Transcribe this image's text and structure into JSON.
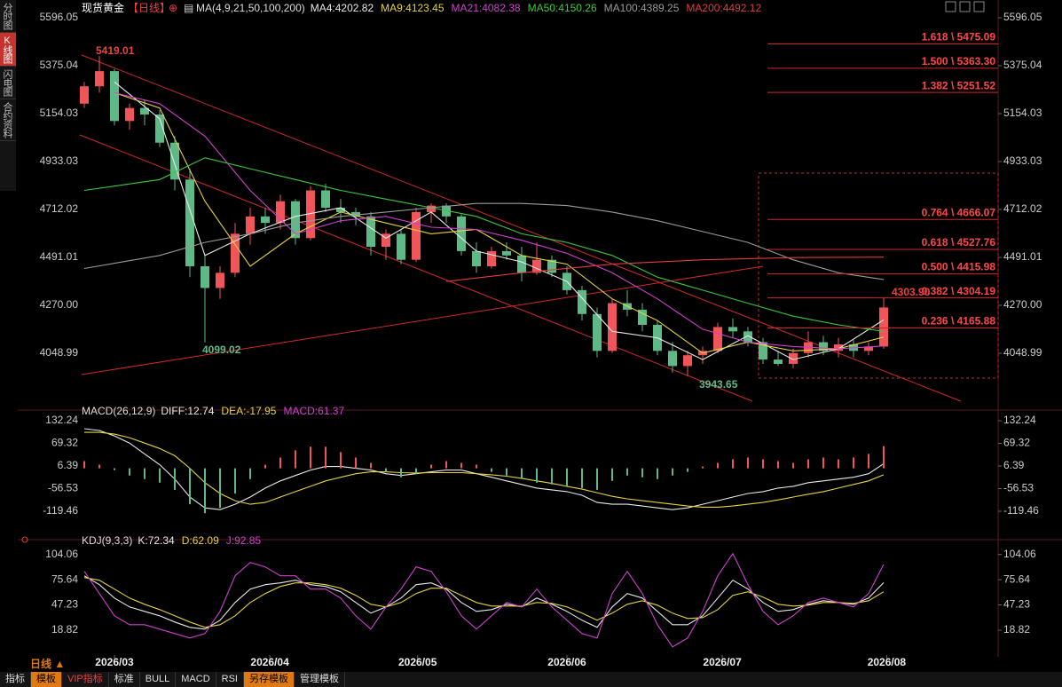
{
  "sidebar": [
    "分时图",
    "K线图",
    "闪电图",
    "合约资料"
  ],
  "chart_data": [
    {
      "type": "candlestick",
      "title": "现货黄金",
      "period": "【日线】",
      "indicator": "MA(4,9,21,50,100,200)",
      "up_color": "#f0555a",
      "down_color": "#5fb987",
      "open": [
        5200,
        5280,
        5350,
        5120,
        5180,
        5150,
        5020,
        4850,
        4450,
        4350,
        4420,
        4600,
        4680,
        4650,
        4750,
        4580,
        4800,
        4720,
        4700,
        4680,
        4540,
        4600,
        4480,
        4700,
        4730,
        4680,
        4520,
        4450,
        4520,
        4500,
        4420,
        4480,
        4420,
        4340,
        4230,
        4060,
        4280,
        4250,
        4180,
        4060,
        3990,
        4040,
        4060,
        4170,
        4150,
        4100,
        4020,
        4000,
        4050,
        4100,
        4060,
        4090,
        4060,
        4080
      ],
      "high": [
        5300,
        5419.01,
        5360,
        5200,
        5220,
        5170,
        5050,
        4900,
        4500,
        4450,
        4650,
        4720,
        4720,
        4780,
        4760,
        4820,
        4830,
        4760,
        4720,
        4700,
        4620,
        4620,
        4720,
        4740,
        4740,
        4690,
        4560,
        4540,
        4560,
        4540,
        4560,
        4500,
        4450,
        4360,
        4260,
        4300,
        4340,
        4280,
        4200,
        4100,
        4060,
        4080,
        4190,
        4210,
        4170,
        4120,
        4060,
        4070,
        4150,
        4130,
        4120,
        4110,
        4100,
        4303.9
      ],
      "low": [
        5180,
        5250,
        5100,
        5080,
        5100,
        5000,
        4800,
        4400,
        4099.02,
        4300,
        4400,
        4550,
        4600,
        4620,
        4550,
        4570,
        4700,
        4650,
        4640,
        4500,
        4480,
        4460,
        4470,
        4650,
        4650,
        4500,
        4420,
        4440,
        4480,
        4380,
        4410,
        4400,
        4320,
        4200,
        4030,
        4050,
        4220,
        4150,
        4040,
        3960,
        3943.65,
        4000,
        4050,
        4120,
        4080,
        4000,
        3990,
        3980,
        4030,
        4040,
        4030,
        4030,
        4040,
        4070
      ],
      "close": [
        5280,
        5350,
        5120,
        5180,
        5150,
        5020,
        4850,
        4450,
        4350,
        4420,
        4600,
        4680,
        4650,
        4750,
        4580,
        4800,
        4720,
        4700,
        4680,
        4540,
        4600,
        4480,
        4700,
        4730,
        4680,
        4520,
        4450,
        4520,
        4500,
        4420,
        4480,
        4420,
        4340,
        4230,
        4060,
        4280,
        4250,
        4180,
        4060,
        3990,
        4040,
        4060,
        4170,
        4150,
        4100,
        4020,
        4000,
        4050,
        4100,
        4060,
        4090,
        4060,
        4080,
        4260
      ],
      "series": [
        {
          "name": "MA4:4202.82",
          "color": "#e8e8e8",
          "x": [
            2,
            5,
            8,
            11,
            14,
            17,
            20,
            23,
            26,
            29,
            32,
            35,
            38,
            41,
            44,
            47,
            50,
            53
          ],
          "values": [
            5300,
            5130,
            4500,
            4600,
            4680,
            4720,
            4580,
            4700,
            4520,
            4470,
            4380,
            4150,
            4120,
            4020,
            4130,
            4020,
            4070,
            4202.82
          ]
        },
        {
          "name": "MA9:4123.45",
          "color": "#e6d23c",
          "x": [
            2,
            5,
            8,
            11,
            14,
            17,
            20,
            23,
            26,
            29,
            32,
            35,
            38,
            41,
            44,
            47,
            50,
            53
          ],
          "values": [
            5250,
            5180,
            4750,
            4450,
            4600,
            4700,
            4650,
            4600,
            4620,
            4500,
            4460,
            4300,
            4200,
            4050,
            4100,
            4060,
            4070,
            4123.45
          ]
        },
        {
          "name": "MA21:4082.38",
          "color": "#d040d0",
          "x": [
            2,
            5,
            8,
            11,
            14,
            17,
            20,
            23,
            26,
            29,
            32,
            35,
            38,
            41,
            44,
            47,
            50,
            53
          ],
          "values": [
            5250,
            5200,
            5050,
            4800,
            4600,
            4660,
            4680,
            4630,
            4620,
            4570,
            4510,
            4420,
            4300,
            4160,
            4100,
            4080,
            4070,
            4082.38
          ]
        },
        {
          "name": "MA50:4150.26",
          "color": "#3cc83c",
          "x": [
            0,
            5,
            8,
            11,
            14,
            17,
            20,
            23,
            26,
            29,
            32,
            35,
            38,
            41,
            44,
            47,
            50,
            53
          ],
          "values": [
            4800,
            4850,
            4950,
            4900,
            4850,
            4800,
            4760,
            4720,
            4680,
            4600,
            4560,
            4500,
            4400,
            4340,
            4280,
            4220,
            4180,
            4150.26
          ]
        },
        {
          "name": "MA100:4389.25",
          "color": "#9a9a9a",
          "x": [
            0,
            5,
            8,
            11,
            14,
            17,
            20,
            23,
            26,
            29,
            32,
            35,
            38,
            41,
            44,
            47,
            50,
            53
          ],
          "values": [
            4440,
            4500,
            4560,
            4600,
            4650,
            4680,
            4700,
            4720,
            4740,
            4740,
            4730,
            4700,
            4660,
            4610,
            4560,
            4480,
            4420,
            4389.25
          ]
        },
        {
          "name": "MA200:4492.12",
          "color": "#e03c3c",
          "x": [
            24,
            29,
            35,
            41,
            47,
            53
          ],
          "values": [
            4380,
            4420,
            4460,
            4480,
            4490,
            4492.12
          ]
        }
      ],
      "fib_levels": [
        {
          "value": 5475.09,
          "label": "1.618 \\ 5475.09"
        },
        {
          "value": 5363.3,
          "label": "1.500 \\ 5363.30"
        },
        {
          "value": 5251.52,
          "label": "1.382 \\ 5251.52"
        },
        {
          "value": 4666.07,
          "label": "0.764 \\ 4666.07"
        },
        {
          "value": 4527.76,
          "label": "0.618 \\ 4527.76"
        },
        {
          "value": 4415.98,
          "label": "0.500 \\ 4415.98"
        },
        {
          "value": 4304.19,
          "label": "0.382 \\ 4304.19"
        },
        {
          "value": 4165.88,
          "label": "0.236 \\ 4165.88"
        }
      ],
      "annotations": [
        5419.01,
        4099.02,
        3943.65,
        {
          "value": 4303.9,
          "label": "4303.90"
        }
      ],
      "ylim": [
        3815.7,
        5616.5
      ],
      "yticks": [
        5596.05,
        5375.04,
        5154.03,
        4933.03,
        4712.02,
        4491.01,
        {
          "value": 4270,
          "label": "4270.00"
        },
        4048.99
      ]
    },
    {
      "type": "macd",
      "title": "MACD(26,12,9)",
      "up_color": "#f0555a",
      "down_color": "#5fb987",
      "series": [
        {
          "name": "DIFF:12.74",
          "color": "#e8e8e8",
          "values": [
            110,
            105,
            90,
            70,
            40,
            10,
            -30,
            -80,
            -110,
            -115,
            -100,
            -80,
            -55,
            -35,
            -20,
            -5,
            5,
            5,
            0,
            -5,
            -15,
            -20,
            -15,
            -10,
            -5,
            -5,
            -15,
            -25,
            -35,
            -45,
            -55,
            -60,
            -65,
            -75,
            -95,
            -100,
            -100,
            -105,
            -110,
            -115,
            -110,
            -100,
            -90,
            -80,
            -70,
            -65,
            -55,
            -50,
            -40,
            -35,
            -30,
            -25,
            -15,
            12.74
          ]
        },
        {
          "name": "DEA:-17.95",
          "color": "#e6d23c",
          "values": [
            100,
            100,
            95,
            85,
            70,
            55,
            35,
            0,
            -40,
            -70,
            -90,
            -100,
            -95,
            -80,
            -65,
            -50,
            -35,
            -25,
            -15,
            -10,
            -10,
            -12,
            -13,
            -12,
            -12,
            -12,
            -15,
            -18,
            -22,
            -28,
            -35,
            -42,
            -50,
            -58,
            -68,
            -78,
            -85,
            -90,
            -95,
            -100,
            -105,
            -108,
            -108,
            -105,
            -100,
            -95,
            -88,
            -80,
            -72,
            -65,
            -55,
            -45,
            -35,
            -17.95
          ]
        },
        {
          "name": "MACD:61.37",
          "color": "#d040d0",
          "style": "histogram",
          "values": [
            20,
            10,
            -5,
            -20,
            -30,
            -40,
            -60,
            -100,
            -125,
            -110,
            -70,
            -30,
            10,
            30,
            50,
            60,
            60,
            45,
            30,
            15,
            -10,
            -25,
            -15,
            10,
            20,
            15,
            10,
            -10,
            -20,
            -30,
            -40,
            -45,
            -50,
            -55,
            -60,
            -35,
            -20,
            -25,
            -30,
            -20,
            -10,
            5,
            15,
            25,
            30,
            25,
            20,
            15,
            25,
            30,
            25,
            30,
            40,
            61.37
          ]
        }
      ],
      "ylim": [
        -178.7,
        152
      ],
      "yticks": [
        132.24,
        69.32,
        6.39,
        -56.53,
        -119.46
      ]
    },
    {
      "type": "kdj",
      "title": "KDJ(9,3,3)",
      "series": [
        {
          "name": "K:72.34",
          "color": "#e8e8e8",
          "values": [
            80,
            70,
            55,
            45,
            40,
            35,
            28,
            22,
            20,
            30,
            50,
            65,
            70,
            72,
            75,
            70,
            68,
            62,
            50,
            38,
            45,
            55,
            70,
            72,
            65,
            50,
            40,
            42,
            48,
            45,
            55,
            48,
            40,
            30,
            22,
            45,
            60,
            55,
            40,
            25,
            25,
            35,
            55,
            75,
            65,
            50,
            40,
            42,
            48,
            52,
            50,
            48,
            55,
            72.34
          ]
        },
        {
          "name": "D:62.09",
          "color": "#e6d23c",
          "values": [
            78,
            75,
            65,
            55,
            48,
            42,
            35,
            28,
            22,
            25,
            35,
            50,
            60,
            68,
            72,
            72,
            70,
            66,
            58,
            48,
            45,
            50,
            60,
            66,
            66,
            58,
            50,
            46,
            46,
            46,
            50,
            49,
            45,
            38,
            30,
            38,
            48,
            52,
            47,
            38,
            32,
            33,
            42,
            58,
            62,
            56,
            48,
            46,
            47,
            50,
            50,
            49,
            52,
            62.09
          ]
        },
        {
          "name": "J:92.85",
          "color": "#d040d0",
          "values": [
            85,
            60,
            35,
            25,
            25,
            20,
            15,
            10,
            15,
            40,
            80,
            95,
            90,
            80,
            80,
            65,
            65,
            55,
            35,
            20,
            45,
            65,
            90,
            85,
            62,
            35,
            20,
            35,
            50,
            45,
            65,
            45,
            30,
            15,
            10,
            60,
            85,
            60,
            25,
            0,
            10,
            40,
            80,
            105,
            70,
            40,
            25,
            35,
            50,
            55,
            50,
            45,
            60,
            92.85
          ]
        }
      ],
      "ylim": [
        -6.2,
        116.7
      ],
      "yticks": [
        104.06,
        75.64,
        47.23,
        18.82
      ],
      "xticks": [
        {
          "value": 2,
          "label": "2026/03"
        },
        {
          "value": 12.3,
          "label": "2026/04"
        },
        {
          "value": 22.1,
          "label": "2026/05"
        },
        {
          "value": 32,
          "label": "2026/06"
        },
        {
          "value": 42.3,
          "label": "2026/07"
        },
        {
          "value": 53.2,
          "label": "2026/08"
        }
      ]
    }
  ],
  "toolbar": {
    "period": "日线 ▲",
    "tabs": [
      "指标",
      "模板",
      "VIP指标",
      "标准",
      "BULL",
      "MACD",
      "RSI",
      "另存模板",
      "管理模板"
    ]
  }
}
